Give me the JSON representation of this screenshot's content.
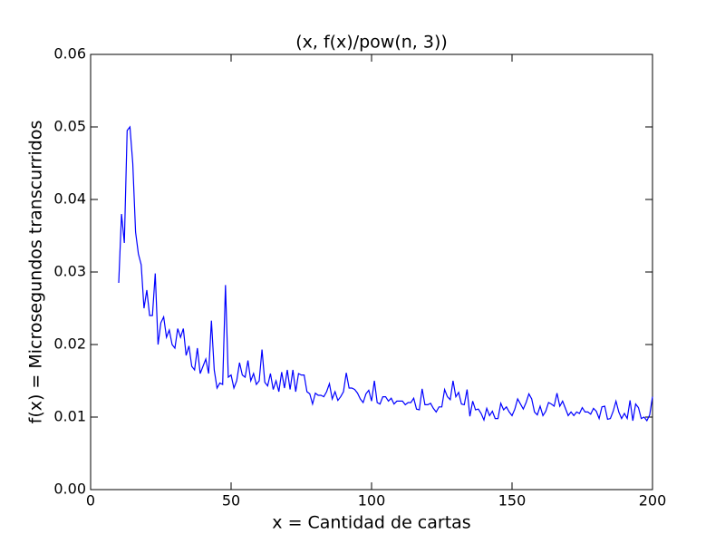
{
  "chart_data": {
    "type": "line",
    "title": "(x, f(x)/pow(n, 3))",
    "x_label": "x = Cantidad de cartas",
    "y_label": "f(x) = Microsegundos transcurridos",
    "color": "#0000ff",
    "x": [
      10,
      11,
      12,
      13,
      14,
      15,
      16,
      17,
      18,
      19,
      20,
      21,
      22,
      23,
      24,
      25,
      26,
      27,
      28,
      29,
      30,
      31,
      32,
      33,
      34,
      35,
      36,
      37,
      38,
      39,
      40,
      41,
      42,
      43,
      44,
      45,
      46,
      47,
      48,
      49,
      50,
      51,
      52,
      53,
      54,
      55,
      56,
      57,
      58,
      59,
      60,
      61,
      62,
      63,
      64,
      65,
      66,
      67,
      68,
      69,
      70,
      71,
      72,
      73,
      74,
      75,
      76,
      77,
      78,
      79,
      80,
      81,
      82,
      83,
      84,
      85,
      86,
      87,
      88,
      89,
      90,
      91,
      92,
      93,
      94,
      95,
      96,
      97,
      98,
      99,
      100,
      101,
      102,
      103,
      104,
      105,
      106,
      107,
      108,
      109,
      110,
      111,
      112,
      113,
      114,
      115,
      116,
      117,
      118,
      119,
      120,
      121,
      122,
      123,
      124,
      125,
      126,
      127,
      128,
      129,
      130,
      131,
      132,
      133,
      134,
      135,
      136,
      137,
      138,
      139,
      140,
      141,
      142,
      143,
      144,
      145,
      146,
      147,
      148,
      149,
      150,
      151,
      152,
      153,
      154,
      155,
      156,
      157,
      158,
      159,
      160,
      161,
      162,
      163,
      164,
      165,
      166,
      167,
      168,
      169,
      170,
      171,
      172,
      173,
      174,
      175,
      176,
      177,
      178,
      179,
      180,
      181,
      182,
      183,
      184,
      185,
      186,
      187,
      188,
      189,
      190,
      191,
      192,
      193,
      194,
      195,
      196,
      197,
      198,
      199,
      200
    ],
    "values": [
      0.0285,
      0.038,
      0.034,
      0.0495,
      0.05,
      0.045,
      0.0355,
      0.0325,
      0.031,
      0.025,
      0.0275,
      0.024,
      0.024,
      0.0298,
      0.02,
      0.023,
      0.0238,
      0.021,
      0.022,
      0.02,
      0.0195,
      0.0222,
      0.021,
      0.0222,
      0.0185,
      0.0198,
      0.017,
      0.0165,
      0.0195,
      0.016,
      0.017,
      0.018,
      0.016,
      0.0233,
      0.0165,
      0.014,
      0.0147,
      0.0145,
      0.0282,
      0.0155,
      0.0158,
      0.014,
      0.015,
      0.0175,
      0.0158,
      0.0155,
      0.0178,
      0.015,
      0.016,
      0.0145,
      0.015,
      0.0193,
      0.0148,
      0.0143,
      0.016,
      0.0138,
      0.015,
      0.0135,
      0.0162,
      0.014,
      0.0165,
      0.0138,
      0.0165,
      0.0135,
      0.016,
      0.0158,
      0.0158,
      0.0135,
      0.0132,
      0.0118,
      0.0133,
      0.013,
      0.013,
      0.0128,
      0.0135,
      0.0146,
      0.0125,
      0.0135,
      0.0123,
      0.0128,
      0.0135,
      0.0161,
      0.014,
      0.014,
      0.0138,
      0.0133,
      0.0125,
      0.012,
      0.0132,
      0.0137,
      0.0122,
      0.015,
      0.012,
      0.0118,
      0.0128,
      0.0128,
      0.0122,
      0.0126,
      0.0118,
      0.0122,
      0.0122,
      0.0122,
      0.0117,
      0.012,
      0.012,
      0.0126,
      0.0111,
      0.011,
      0.0139,
      0.0117,
      0.0117,
      0.0119,
      0.0112,
      0.0107,
      0.0114,
      0.0114,
      0.0138,
      0.0128,
      0.0124,
      0.015,
      0.0128,
      0.0134,
      0.0118,
      0.0117,
      0.0138,
      0.0101,
      0.0122,
      0.011,
      0.0111,
      0.0105,
      0.0096,
      0.0112,
      0.0102,
      0.0108,
      0.0098,
      0.0098,
      0.0119,
      0.011,
      0.0114,
      0.0107,
      0.0102,
      0.0111,
      0.0125,
      0.0118,
      0.0111,
      0.012,
      0.0132,
      0.0125,
      0.0107,
      0.0103,
      0.0115,
      0.0102,
      0.0108,
      0.012,
      0.0118,
      0.0115,
      0.0133,
      0.0115,
      0.0122,
      0.0112,
      0.0102,
      0.0107,
      0.0102,
      0.0107,
      0.0105,
      0.0113,
      0.0107,
      0.0107,
      0.0104,
      0.0112,
      0.0108,
      0.0098,
      0.0114,
      0.0115,
      0.0097,
      0.0098,
      0.0108,
      0.0122,
      0.0107,
      0.0098,
      0.0105,
      0.0098,
      0.0123,
      0.0095,
      0.0118,
      0.0113,
      0.0098,
      0.01,
      0.0095,
      0.0103,
      0.0128
    ],
    "xlim": [
      0,
      200
    ],
    "xticks": [
      0,
      50,
      100,
      150,
      200
    ],
    "ylim": [
      0,
      0.06
    ],
    "yticks": [
      {
        "value": 0,
        "label": "0.00"
      },
      0.01,
      0.02,
      0.03,
      0.04,
      0.05,
      0.06
    ]
  }
}
